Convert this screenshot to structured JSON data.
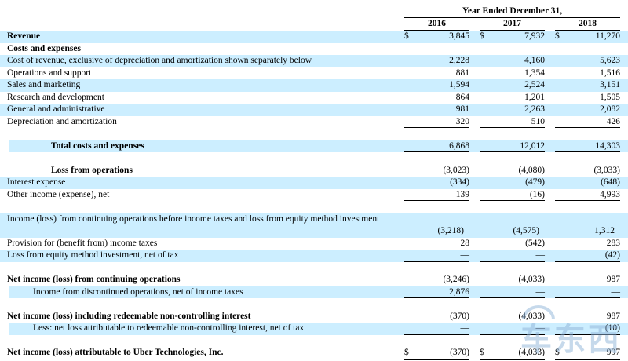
{
  "table": {
    "period_header": "Year Ended December 31,",
    "columns": [
      "2016",
      "2017",
      "2018"
    ],
    "currency_symbol": "$",
    "rows": [
      {
        "label": "Revenue",
        "currency": "$",
        "values": [
          "3,845",
          "7,932",
          "11,270"
        ]
      },
      {
        "label": "Costs and expenses"
      },
      {
        "label": "Cost of revenue, exclusive of depreciation and amortization shown separately below",
        "values": [
          "2,228",
          "4,160",
          "5,623"
        ]
      },
      {
        "label": "Operations and support",
        "values": [
          "881",
          "1,354",
          "1,516"
        ]
      },
      {
        "label": "Sales and marketing",
        "values": [
          "1,594",
          "2,524",
          "3,151"
        ]
      },
      {
        "label": "Research and development",
        "values": [
          "864",
          "1,201",
          "1,505"
        ]
      },
      {
        "label": "General and administrative",
        "values": [
          "981",
          "2,263",
          "2,082"
        ]
      },
      {
        "label": "Depreciation and amortization",
        "values": [
          "320",
          "510",
          "426"
        ]
      },
      {
        "label": "Total costs and expenses",
        "values": [
          "6,868",
          "12,012",
          "14,303"
        ]
      },
      {
        "label": "Loss from operations",
        "values": [
          "(3,023)",
          "(4,080)",
          "(3,033)"
        ]
      },
      {
        "label": "Interest expense",
        "values": [
          "(334)",
          "(479)",
          "(648)"
        ]
      },
      {
        "label": "Other income (expense), net",
        "values": [
          "139",
          "(16)",
          "4,993"
        ]
      },
      {
        "label": "Income (loss) from continuing operations before income taxes and loss from equity method investment",
        "values": [
          "(3,218)",
          "(4,575)",
          "1,312"
        ]
      },
      {
        "label": "Provision for (benefit from) income taxes",
        "values": [
          "28",
          "(542)",
          "283"
        ]
      },
      {
        "label": "Loss from equity method investment, net of tax",
        "values": [
          "—",
          "—",
          "(42)"
        ]
      },
      {
        "label": "Net income (loss) from continuing operations",
        "values": [
          "(3,246)",
          "(4,033)",
          "987"
        ]
      },
      {
        "label": "Income from discontinued operations, net of income taxes",
        "values": [
          "2,876",
          "—",
          "—"
        ]
      },
      {
        "label": "Net income (loss) including redeemable non-controlling interest",
        "values": [
          "(370)",
          "(4,033)",
          "987"
        ]
      },
      {
        "label": "Less: net loss attributable to redeemable non-controlling interest, net of tax",
        "values": [
          "—",
          "—",
          "(10)"
        ]
      },
      {
        "label": "Net income (loss) attributable to Uber Technologies, Inc.",
        "currency": "$",
        "values": [
          "(370)",
          "(4,033)",
          "997"
        ]
      }
    ],
    "colors": {
      "row_highlight": "#CCEEFF",
      "text": "#000000"
    }
  },
  "watermark": "车东西"
}
